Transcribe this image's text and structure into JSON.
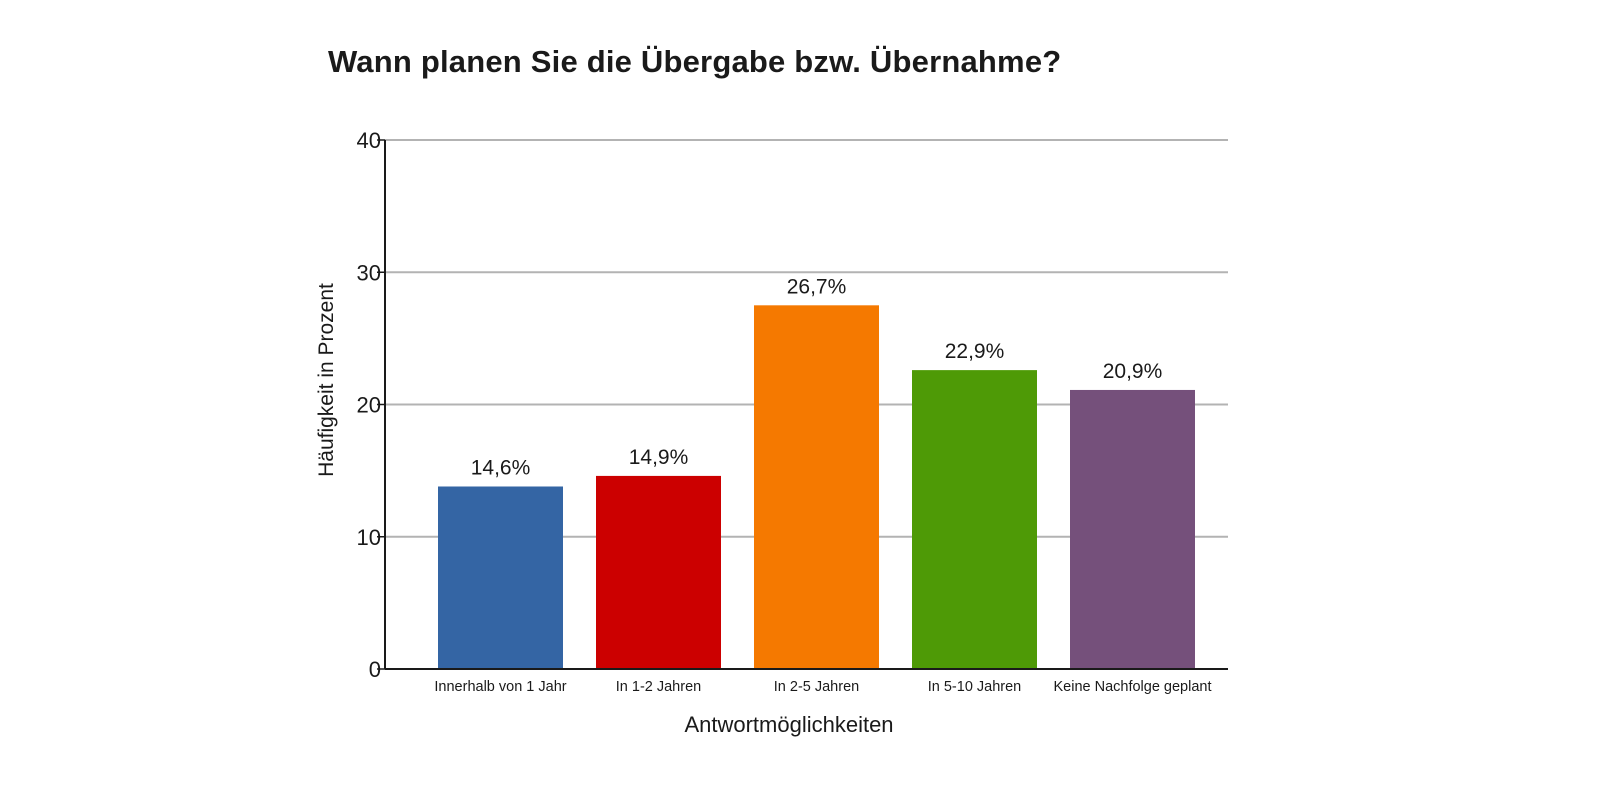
{
  "chart_data": {
    "type": "bar",
    "title": "Wann planen Sie die Übergabe bzw. Übernahme?",
    "xlabel": "Antwortmöglichkeiten",
    "ylabel": "Häufigkeit in Prozent",
    "ylim": [
      0,
      40
    ],
    "yticks": [
      "0",
      "10",
      "20",
      "30",
      "40"
    ],
    "grid": true,
    "categories": [
      "Innerhalb von 1 Jahr",
      "In 1-2 Jahren",
      "In 2-5 Jahren",
      "In 5-10 Jahren",
      "Keine Nachfolge geplant"
    ],
    "values": [
      14.6,
      14.9,
      26.7,
      22.9,
      20.9
    ],
    "bar_heights": [
      13.8,
      14.6,
      27.5,
      22.6,
      21.1
    ],
    "data_labels": [
      "14,6%",
      "14,9%",
      "26,7%",
      "22,9%",
      "20,9%"
    ],
    "colors": [
      "#3465a4",
      "#cc0000",
      "#f57900",
      "#4e9a06",
      "#75507b"
    ],
    "grid_color": "#b3b3b3"
  }
}
